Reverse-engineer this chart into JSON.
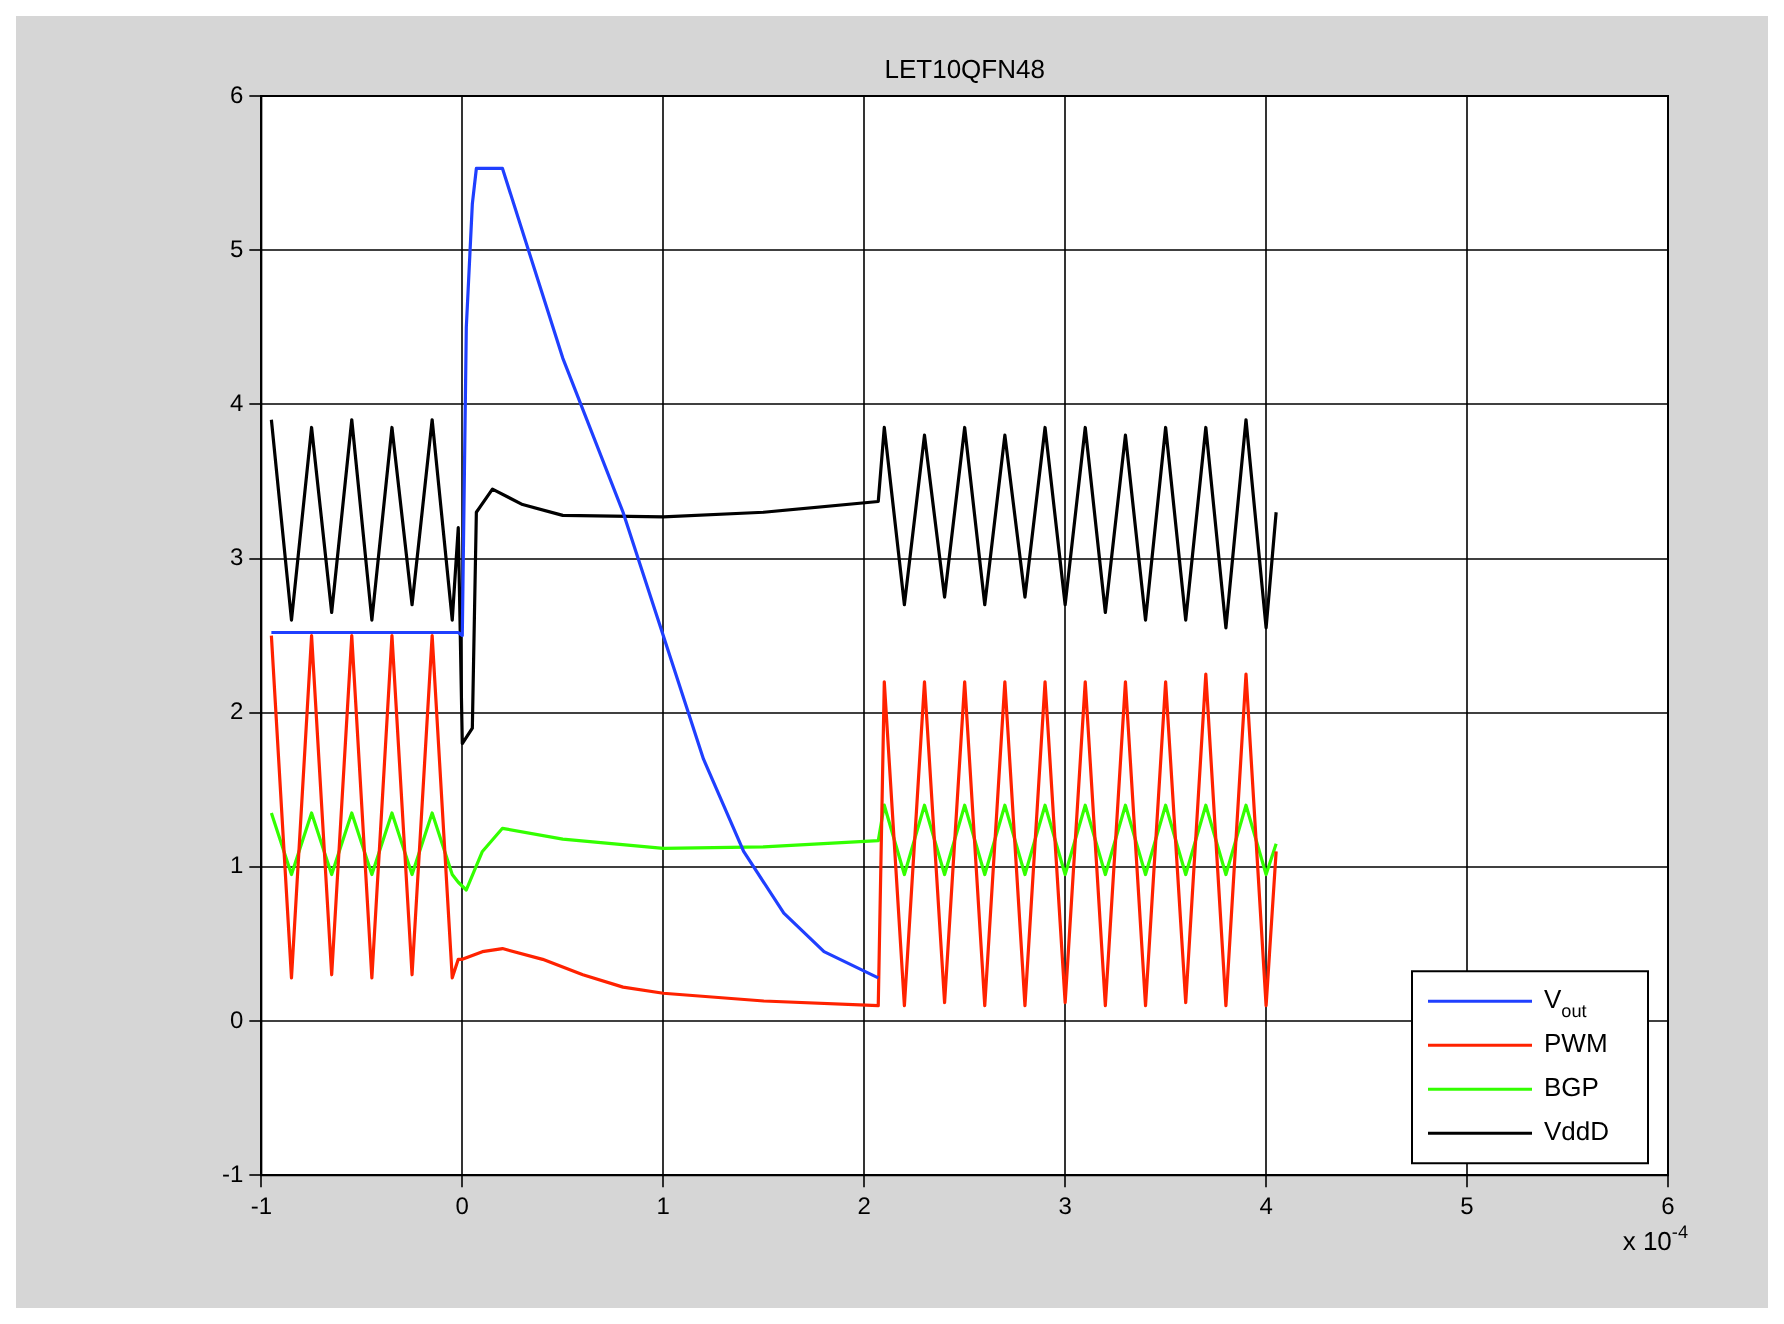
{
  "chart_data": {
    "type": "line",
    "title": "LET10QFN48",
    "annotations": [
      "x 10$^{-4}$"
    ],
    "xlim": [
      -1,
      6
    ],
    "xticks": [
      -1,
      0,
      1,
      2,
      3,
      4,
      5,
      6
    ],
    "ylim": [
      -1,
      6
    ],
    "yticks": [
      -1,
      0,
      1,
      2,
      3,
      4,
      5,
      6
    ],
    "grid": true,
    "legend": "bottom right",
    "line_style": "solid",
    "marker": "none",
    "series": [
      {
        "name": "V$_{out}$",
        "color": "#1f3fff",
        "x": [
          -0.95,
          -0.5,
          -0.02,
          0.0,
          0.02,
          0.05,
          0.07,
          0.2,
          0.5,
          0.8,
          1.0,
          1.2,
          1.4,
          1.6,
          1.8,
          2.07
        ],
        "values": [
          2.52,
          2.52,
          2.52,
          2.5,
          4.5,
          5.3,
          5.53,
          5.53,
          4.3,
          3.3,
          2.5,
          1.7,
          1.1,
          0.7,
          0.45,
          0.28
        ]
      },
      {
        "name": "PWM",
        "color": "#ff2200",
        "x": [
          -0.95,
          -0.85,
          -0.75,
          -0.65,
          -0.55,
          -0.45,
          -0.35,
          -0.25,
          -0.15,
          -0.05,
          -0.02,
          0.0,
          0.1,
          0.2,
          0.4,
          0.6,
          0.8,
          1.0,
          1.5,
          2.07,
          2.1,
          2.2,
          2.3,
          2.4,
          2.5,
          2.6,
          2.7,
          2.8,
          2.9,
          3.0,
          3.1,
          3.2,
          3.3,
          3.4,
          3.5,
          3.6,
          3.7,
          3.8,
          3.9,
          4.0,
          4.05
        ],
        "values": [
          2.5,
          0.28,
          2.5,
          0.3,
          2.5,
          0.28,
          2.5,
          0.3,
          2.5,
          0.28,
          0.4,
          0.4,
          0.45,
          0.47,
          0.4,
          0.3,
          0.22,
          0.18,
          0.13,
          0.1,
          2.2,
          0.1,
          2.2,
          0.12,
          2.2,
          0.1,
          2.2,
          0.1,
          2.2,
          0.12,
          2.2,
          0.1,
          2.2,
          0.1,
          2.2,
          0.12,
          2.25,
          0.1,
          2.25,
          0.1,
          1.1
        ]
      },
      {
        "name": "BGP",
        "color": "#33ff00",
        "x": [
          -0.95,
          -0.85,
          -0.75,
          -0.65,
          -0.55,
          -0.45,
          -0.35,
          -0.25,
          -0.15,
          -0.05,
          -0.02,
          0.02,
          0.1,
          0.2,
          0.5,
          1.0,
          1.5,
          2.07,
          2.1,
          2.2,
          2.3,
          2.4,
          2.5,
          2.6,
          2.7,
          2.8,
          2.9,
          3.0,
          3.1,
          3.2,
          3.3,
          3.4,
          3.5,
          3.6,
          3.7,
          3.8,
          3.9,
          4.0,
          4.05
        ],
        "values": [
          1.35,
          0.95,
          1.35,
          0.95,
          1.35,
          0.95,
          1.35,
          0.95,
          1.35,
          0.95,
          0.9,
          0.85,
          1.1,
          1.25,
          1.18,
          1.12,
          1.13,
          1.17,
          1.4,
          0.95,
          1.4,
          0.95,
          1.4,
          0.95,
          1.4,
          0.95,
          1.4,
          0.95,
          1.4,
          0.95,
          1.4,
          0.95,
          1.4,
          0.95,
          1.4,
          0.95,
          1.4,
          0.95,
          1.15
        ]
      },
      {
        "name": "VddD",
        "color": "#000000",
        "x": [
          -0.95,
          -0.85,
          -0.75,
          -0.65,
          -0.55,
          -0.45,
          -0.35,
          -0.25,
          -0.15,
          -0.05,
          -0.02,
          0.0,
          0.05,
          0.07,
          0.15,
          0.3,
          0.5,
          1.0,
          1.5,
          2.07,
          2.1,
          2.2,
          2.3,
          2.4,
          2.5,
          2.6,
          2.7,
          2.8,
          2.9,
          3.0,
          3.1,
          3.2,
          3.3,
          3.4,
          3.5,
          3.6,
          3.7,
          3.8,
          3.9,
          4.0,
          4.05
        ],
        "values": [
          3.9,
          2.6,
          3.85,
          2.65,
          3.9,
          2.6,
          3.85,
          2.7,
          3.9,
          2.6,
          3.2,
          1.8,
          1.9,
          3.3,
          3.45,
          3.35,
          3.28,
          3.27,
          3.3,
          3.37,
          3.85,
          2.7,
          3.8,
          2.75,
          3.85,
          2.7,
          3.8,
          2.75,
          3.85,
          2.7,
          3.85,
          2.65,
          3.8,
          2.6,
          3.85,
          2.6,
          3.85,
          2.55,
          3.9,
          2.55,
          3.3
        ]
      }
    ]
  }
}
